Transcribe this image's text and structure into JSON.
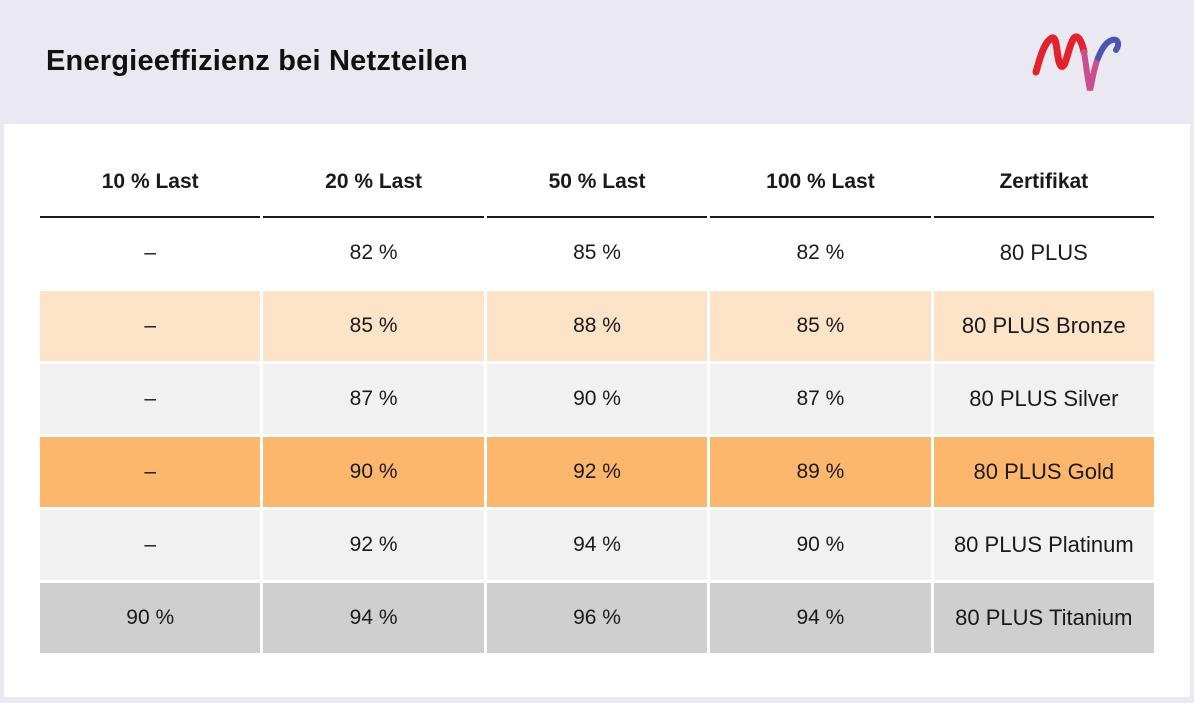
{
  "title": "Energieeffizienz bei Netzteilen",
  "logo": {
    "name": "mvv-logo",
    "colors": [
      "#e5212d",
      "#c83c6e",
      "#7d5aa6",
      "#3a4fa3"
    ]
  },
  "table": {
    "headers": [
      "10 % Last",
      "20 % Last",
      "50 % Last",
      "100 % Last",
      "Zertifikat"
    ],
    "rows": [
      {
        "cells": [
          "–",
          "82 %",
          "85 %",
          "82 %",
          "80 PLUS"
        ],
        "color": "#ffffff"
      },
      {
        "cells": [
          "–",
          "85 %",
          "88 %",
          "85 %",
          "80 PLUS Bronze"
        ],
        "color": "#fde3c8"
      },
      {
        "cells": [
          "–",
          "87 %",
          "90 %",
          "87 %",
          "80 PLUS Silver"
        ],
        "color": "#f1f1f1"
      },
      {
        "cells": [
          "–",
          "90 %",
          "92 %",
          "89 %",
          "80 PLUS Gold"
        ],
        "color": "#fdb76c"
      },
      {
        "cells": [
          "–",
          "92 %",
          "94 %",
          "90 %",
          "80 PLUS Platinum"
        ],
        "color": "#f1f1f1"
      },
      {
        "cells": [
          "90 %",
          "94 %",
          "96 %",
          "94 %",
          "80 PLUS Titanium"
        ],
        "color": "#cfcfcf"
      }
    ]
  }
}
